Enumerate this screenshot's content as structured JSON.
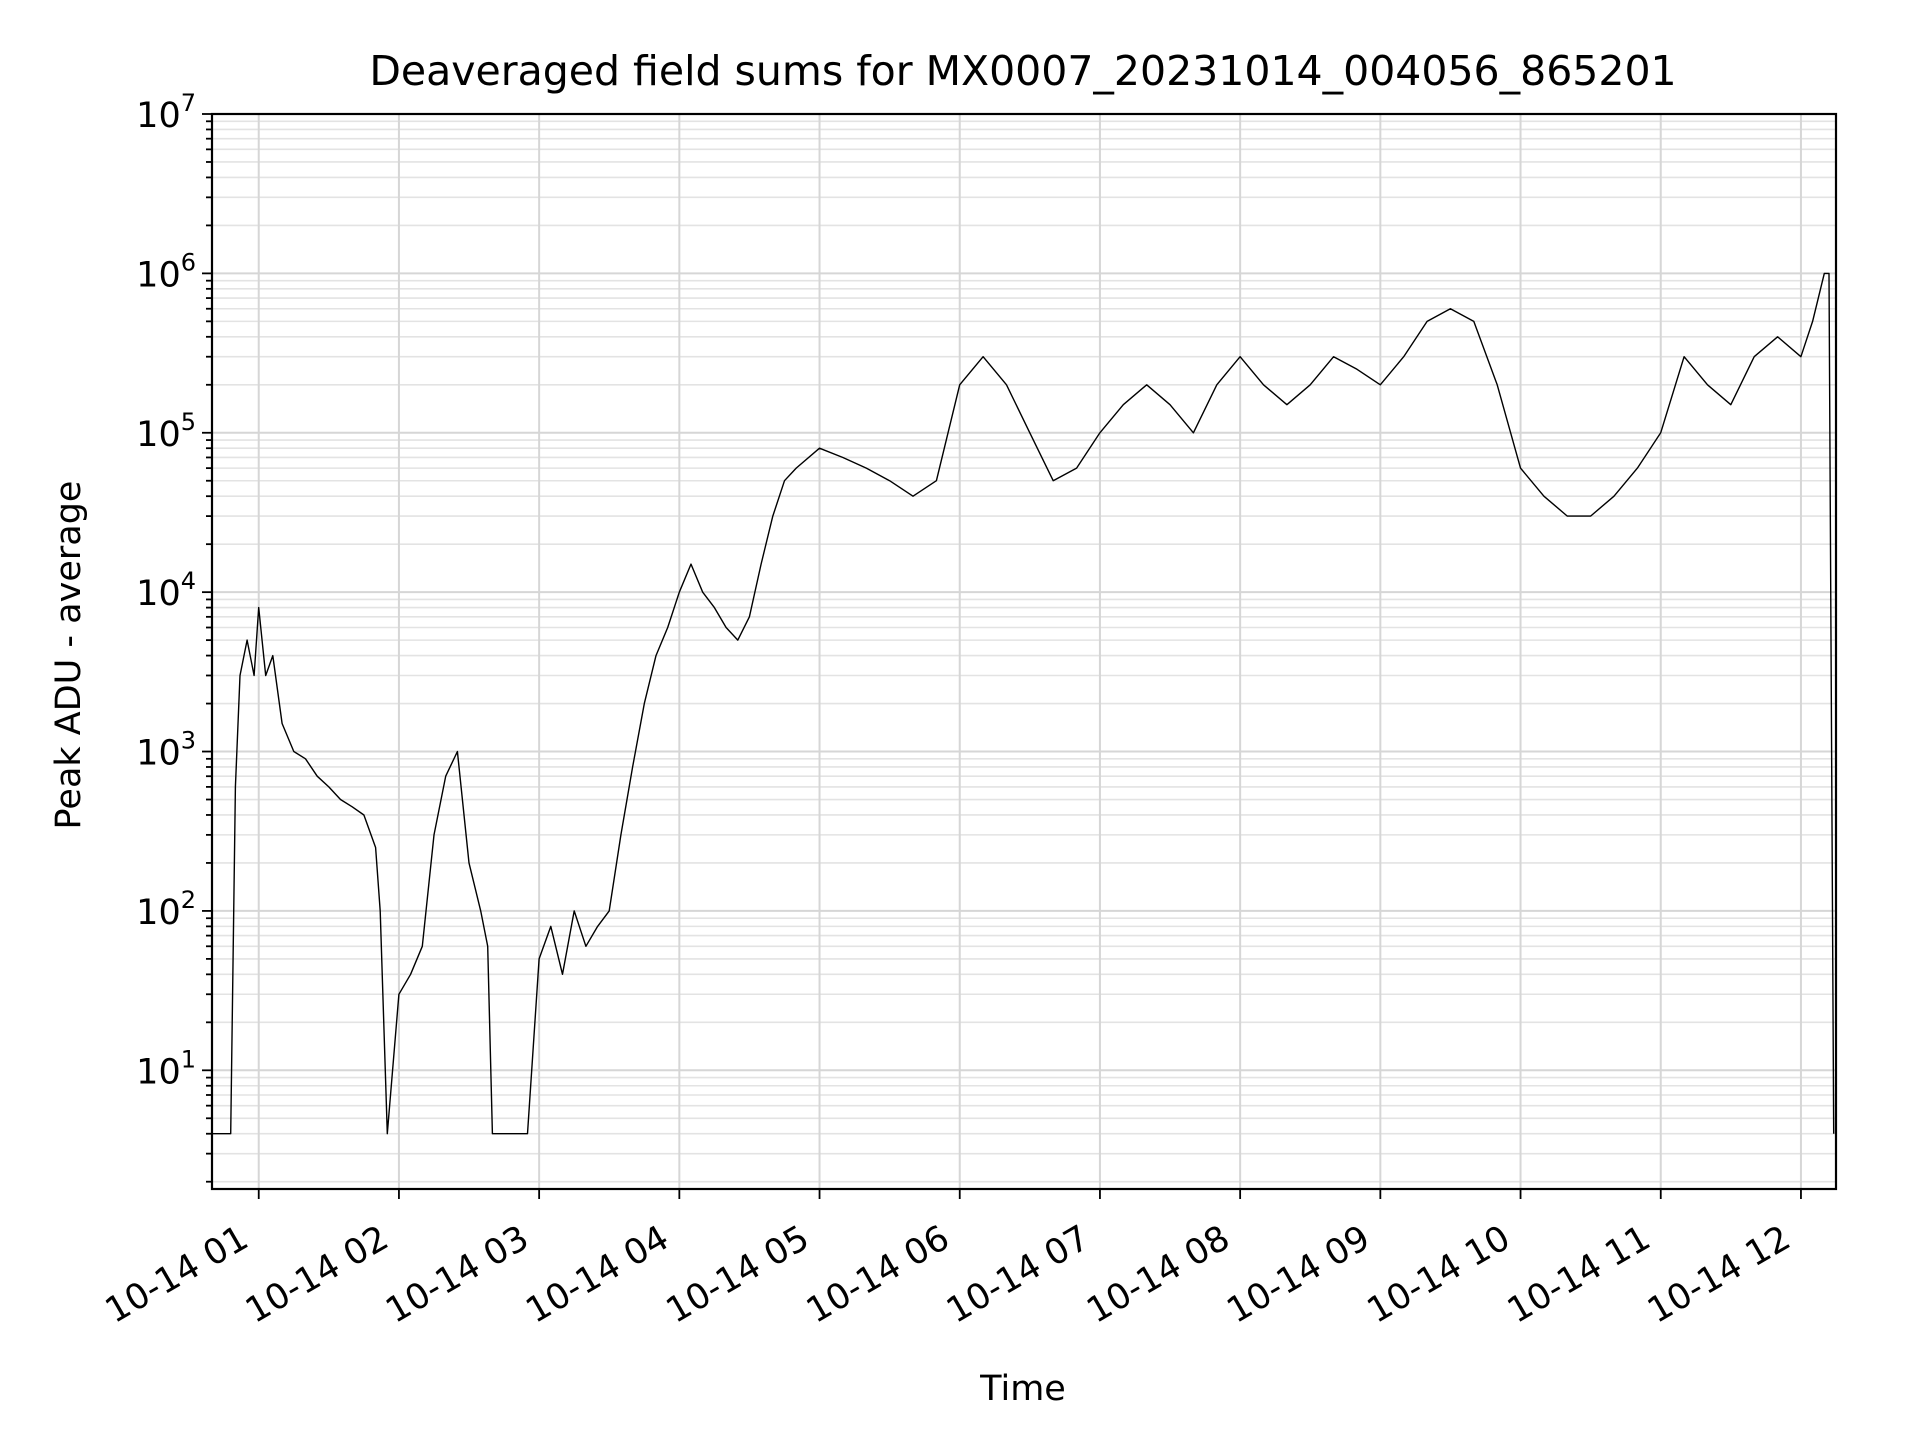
{
  "chart_data": {
    "type": "line",
    "title": "Deaveraged field sums for MX0007_20231014_004056_865201",
    "xlabel": "Time",
    "ylabel": "Peak ADU - average",
    "yscale": "log",
    "xlim": [
      "2023-10-14 00:40",
      "2023-10-14 12:15"
    ],
    "ylim": [
      1.8,
      10000000
    ],
    "grid": true,
    "x_tick_labels": [
      "10-14 01",
      "10-14 02",
      "10-14 03",
      "10-14 04",
      "10-14 05",
      "10-14 06",
      "10-14 07",
      "10-14 08",
      "10-14 09",
      "10-14 10",
      "10-14 11",
      "10-14 12"
    ],
    "y_tick_labels": [
      {
        "base": "10",
        "exp": "1"
      },
      {
        "base": "10",
        "exp": "2"
      },
      {
        "base": "10",
        "exp": "3"
      },
      {
        "base": "10",
        "exp": "4"
      },
      {
        "base": "10",
        "exp": "5"
      },
      {
        "base": "10",
        "exp": "6"
      },
      {
        "base": "10",
        "exp": "7"
      }
    ],
    "line_color": "#000000",
    "series": [
      {
        "x": [
          "2023-10-14 00:40",
          "2023-10-14 00:45",
          "2023-10-14 00:48",
          "2023-10-14 00:50",
          "2023-10-14 00:52",
          "2023-10-14 00:55",
          "2023-10-14 00:58",
          "2023-10-14 01:00",
          "2023-10-14 01:03",
          "2023-10-14 01:06",
          "2023-10-14 01:10",
          "2023-10-14 01:15",
          "2023-10-14 01:20",
          "2023-10-14 01:25",
          "2023-10-14 01:30",
          "2023-10-14 01:35",
          "2023-10-14 01:40",
          "2023-10-14 01:45",
          "2023-10-14 01:50",
          "2023-10-14 01:52",
          "2023-10-14 01:55",
          "2023-10-14 02:00",
          "2023-10-14 02:05",
          "2023-10-14 02:10",
          "2023-10-14 02:15",
          "2023-10-14 02:20",
          "2023-10-14 02:25",
          "2023-10-14 02:30",
          "2023-10-14 02:35",
          "2023-10-14 02:38",
          "2023-10-14 02:40",
          "2023-10-14 02:50",
          "2023-10-14 02:55",
          "2023-10-14 03:00",
          "2023-10-14 03:05",
          "2023-10-14 03:10",
          "2023-10-14 03:15",
          "2023-10-14 03:20",
          "2023-10-14 03:25",
          "2023-10-14 03:30",
          "2023-10-14 03:35",
          "2023-10-14 03:40",
          "2023-10-14 03:45",
          "2023-10-14 03:50",
          "2023-10-14 03:55",
          "2023-10-14 04:00",
          "2023-10-14 04:05",
          "2023-10-14 04:10",
          "2023-10-14 04:15",
          "2023-10-14 04:20",
          "2023-10-14 04:25",
          "2023-10-14 04:30",
          "2023-10-14 04:35",
          "2023-10-14 04:40",
          "2023-10-14 04:45",
          "2023-10-14 04:50",
          "2023-10-14 05:00",
          "2023-10-14 05:10",
          "2023-10-14 05:20",
          "2023-10-14 05:30",
          "2023-10-14 05:40",
          "2023-10-14 05:50",
          "2023-10-14 06:00",
          "2023-10-14 06:10",
          "2023-10-14 06:20",
          "2023-10-14 06:30",
          "2023-10-14 06:40",
          "2023-10-14 06:50",
          "2023-10-14 07:00",
          "2023-10-14 07:10",
          "2023-10-14 07:20",
          "2023-10-14 07:30",
          "2023-10-14 07:40",
          "2023-10-14 07:50",
          "2023-10-14 08:00",
          "2023-10-14 08:10",
          "2023-10-14 08:20",
          "2023-10-14 08:30",
          "2023-10-14 08:40",
          "2023-10-14 08:50",
          "2023-10-14 09:00",
          "2023-10-14 09:10",
          "2023-10-14 09:20",
          "2023-10-14 09:30",
          "2023-10-14 09:40",
          "2023-10-14 09:50",
          "2023-10-14 10:00",
          "2023-10-14 10:10",
          "2023-10-14 10:20",
          "2023-10-14 10:30",
          "2023-10-14 10:40",
          "2023-10-14 10:50",
          "2023-10-14 11:00",
          "2023-10-14 11:10",
          "2023-10-14 11:20",
          "2023-10-14 11:30",
          "2023-10-14 11:40",
          "2023-10-14 11:50",
          "2023-10-14 12:00",
          "2023-10-14 12:05",
          "2023-10-14 12:10",
          "2023-10-14 12:12",
          "2023-10-14 12:14"
        ],
        "values": [
          4,
          4,
          4,
          600,
          3000,
          5000,
          3000,
          8000,
          3000,
          4000,
          1500,
          1000,
          900,
          700,
          600,
          500,
          450,
          400,
          250,
          100,
          4,
          30,
          40,
          60,
          300,
          700,
          1000,
          200,
          100,
          60,
          4,
          4,
          4,
          50,
          80,
          40,
          100,
          60,
          80,
          100,
          300,
          800,
          2000,
          4000,
          6000,
          10000,
          15000,
          10000,
          8000,
          6000,
          5000,
          7000,
          15000,
          30000,
          50000,
          60000,
          80000,
          70000,
          60000,
          50000,
          40000,
          50000,
          200000,
          300000,
          200000,
          100000,
          50000,
          60000,
          100000,
          150000,
          200000,
          150000,
          100000,
          200000,
          300000,
          200000,
          150000,
          200000,
          300000,
          250000,
          200000,
          300000,
          500000,
          600000,
          500000,
          200000,
          60000,
          40000,
          30000,
          30000,
          40000,
          60000,
          100000,
          300000,
          200000,
          150000,
          300000,
          400000,
          300000,
          500000,
          1000000,
          1000000,
          4
        ]
      }
    ]
  }
}
